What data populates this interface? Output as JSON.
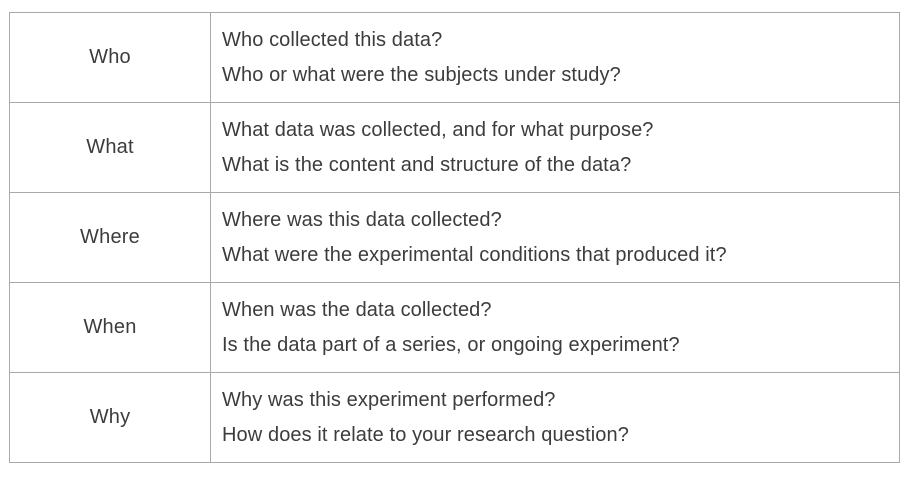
{
  "rows": [
    {
      "label": "Who",
      "questions": [
        "Who collected this data?",
        "Who or what were the subjects under study?"
      ]
    },
    {
      "label": "What",
      "questions": [
        "What data was collected, and for what purpose?",
        "What is the content and structure of the data?"
      ]
    },
    {
      "label": "Where",
      "questions": [
        "Where was this data collected?",
        "What were the experimental conditions that produced it?"
      ]
    },
    {
      "label": "When",
      "questions": [
        "When was the data collected?",
        "Is the data part of a series, or ongoing experiment?"
      ]
    },
    {
      "label": "Why",
      "questions": [
        "Why was this experiment performed?",
        "How does it relate to your research question?"
      ]
    }
  ]
}
